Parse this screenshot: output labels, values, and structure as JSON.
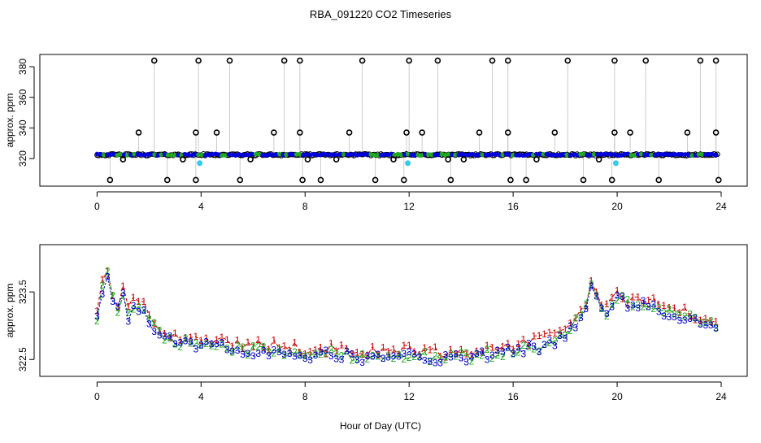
{
  "title": "RBA_091220  CO2 Timeseries",
  "xlabel": "Hour of Day (UTC)",
  "chart_data": [
    {
      "type": "scatter",
      "title": "RBA_091220  CO2 Timeseries",
      "ylabel": "approx. ppm",
      "xlim": [
        -2.2,
        25
      ],
      "ylim": [
        302,
        388
      ],
      "xticks": [
        0,
        4,
        8,
        12,
        16,
        20,
        24
      ],
      "yticks": [
        320,
        340,
        360,
        380
      ],
      "baseline": 322.5,
      "baseline_range": [
        0,
        23.9
      ],
      "outliers_high": [
        2.2,
        3.9,
        5.1,
        7.2,
        7.8,
        10.2,
        12.0,
        13.1,
        15.2,
        15.8,
        18.1,
        19.9,
        21.1,
        23.2,
        23.8
      ],
      "outliers_low": [
        0.5,
        2.7,
        3.8,
        5.5,
        7.9,
        8.6,
        10.7,
        11.8,
        13.6,
        15.9,
        16.5,
        18.7,
        19.8,
        21.6,
        23.9
      ],
      "mid_high": [
        1.6,
        3.8,
        4.6,
        6.8,
        7.8,
        9.7,
        11.9,
        12.5,
        14.7,
        15.8,
        17.6,
        19.9,
        20.5,
        22.7,
        23.8
      ],
      "mid_low": [
        1.0,
        3.3,
        5.9,
        8.1,
        9.2,
        11.4,
        13.5,
        14.1,
        16.9,
        19.3
      ],
      "cyan_points": [
        [
          3.95,
          317
        ],
        [
          11.95,
          317
        ],
        [
          19.95,
          317
        ]
      ]
    },
    {
      "type": "line",
      "ylabel": "approx. ppm",
      "xlim": [
        -2.2,
        25
      ],
      "ylim": [
        322.25,
        324.2
      ],
      "xticks": [
        0,
        4,
        8,
        12,
        16,
        20,
        24
      ],
      "yticks": [
        322.5,
        323.5
      ],
      "series": [
        {
          "name": "1",
          "color": "#cc0000",
          "dash": "4,3",
          "label": "1"
        },
        {
          "name": "2",
          "color": "#22aa22",
          "dash": "6,3",
          "label": "2"
        },
        {
          "name": "3",
          "color": "#0000cc",
          "dash": "2,2",
          "label": "3"
        }
      ],
      "profile": [
        [
          0.0,
          323.1
        ],
        [
          0.2,
          323.55
        ],
        [
          0.35,
          323.85
        ],
        [
          0.5,
          323.6
        ],
        [
          0.7,
          323.2
        ],
        [
          1.0,
          323.45
        ],
        [
          1.2,
          323.15
        ],
        [
          1.5,
          323.35
        ],
        [
          1.8,
          323.25
        ],
        [
          2.1,
          323.05
        ],
        [
          2.5,
          322.85
        ],
        [
          3.0,
          322.8
        ],
        [
          3.5,
          322.75
        ],
        [
          4.0,
          322.75
        ],
        [
          5.0,
          322.7
        ],
        [
          6.0,
          322.65
        ],
        [
          7.0,
          322.65
        ],
        [
          8.0,
          322.6
        ],
        [
          9.0,
          322.6
        ],
        [
          10.0,
          322.58
        ],
        [
          11.0,
          322.55
        ],
        [
          12.0,
          322.6
        ],
        [
          13.0,
          322.55
        ],
        [
          14.0,
          322.55
        ],
        [
          15.0,
          322.6
        ],
        [
          16.0,
          322.65
        ],
        [
          16.5,
          322.7
        ],
        [
          17.0,
          322.72
        ],
        [
          17.5,
          322.8
        ],
        [
          18.0,
          322.9
        ],
        [
          18.5,
          323.1
        ],
        [
          18.9,
          323.35
        ],
        [
          19.05,
          323.75
        ],
        [
          19.3,
          323.3
        ],
        [
          19.7,
          323.2
        ],
        [
          20.0,
          323.45
        ],
        [
          20.5,
          323.3
        ],
        [
          21.0,
          323.35
        ],
        [
          21.5,
          323.3
        ],
        [
          22.0,
          323.2
        ],
        [
          22.5,
          323.15
        ],
        [
          23.0,
          323.1
        ],
        [
          23.5,
          323.05
        ],
        [
          23.8,
          323.0
        ]
      ]
    }
  ]
}
